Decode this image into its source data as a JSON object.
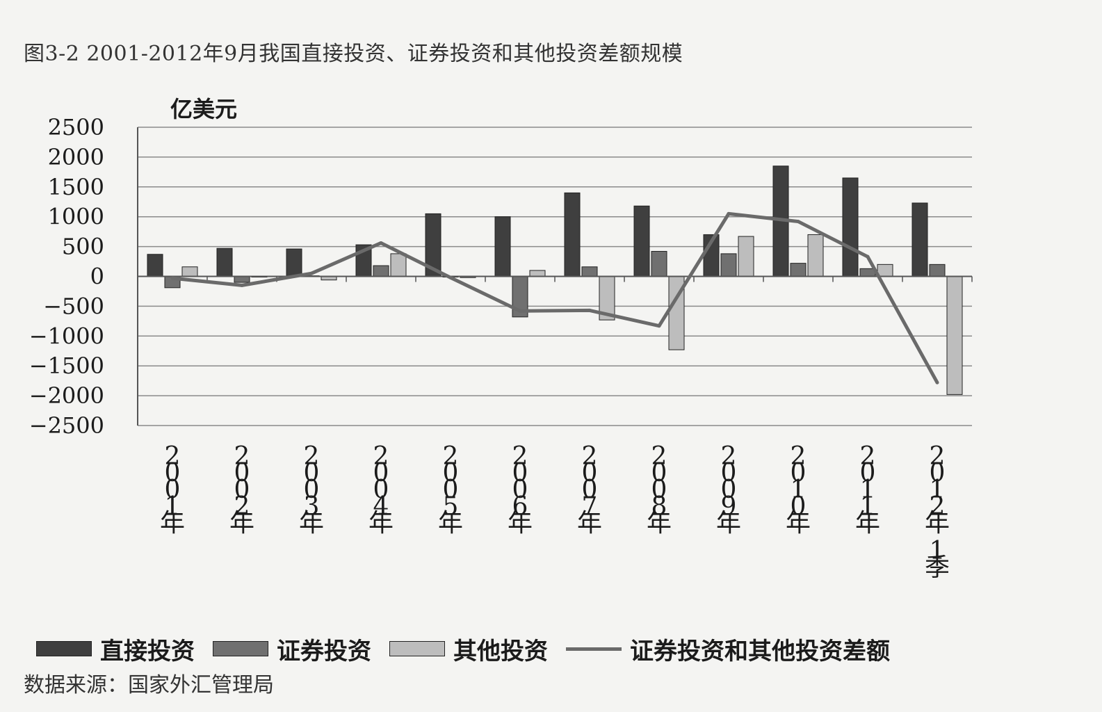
{
  "figure": {
    "title": "图3-2 2001-2012年9月我国直接投资、证券投资和其他投资差额规模",
    "source": "数据来源：国家外汇管理局"
  },
  "chart_data": {
    "type": "bar",
    "ylabel": "亿美元",
    "ylim": [
      -2500,
      2500
    ],
    "yticks": [
      2500,
      2000,
      1500,
      1000,
      500,
      0,
      -500,
      -1000,
      -1500,
      -2000,
      -2500
    ],
    "ytick_labels": [
      "2500",
      "2000",
      "1500",
      "1000",
      "500",
      "0",
      "−500",
      "−1000",
      "−1500",
      "−2000",
      "−2500"
    ],
    "grid": true,
    "legend_position": "bottom",
    "categories": [
      "2001年",
      "2002年",
      "2003年",
      "2004年",
      "2005年",
      "2006年",
      "2007年",
      "2008年",
      "2009年",
      "2010年",
      "2011年",
      "2012年1季"
    ],
    "series": [
      {
        "name": "直接投资",
        "type": "bar",
        "color": "#3f3f3f",
        "values": [
          370,
          470,
          460,
          530,
          1050,
          1000,
          1400,
          1180,
          700,
          1850,
          1650,
          1230
        ]
      },
      {
        "name": "证券投资",
        "type": "bar",
        "color": "#707070",
        "values": [
          -190,
          -100,
          10,
          180,
          -10,
          -680,
          160,
          420,
          380,
          220,
          130,
          200
        ]
      },
      {
        "name": "其他投资",
        "type": "bar",
        "color": "#bdbdbd",
        "values": [
          160,
          0,
          -60,
          380,
          -20,
          100,
          -730,
          -1230,
          670,
          700,
          200,
          -1980
        ]
      },
      {
        "name": "证券投资和其他投资差额",
        "type": "line",
        "color": "#6a6a6a",
        "values": [
          -30,
          -150,
          50,
          560,
          -20,
          -580,
          -570,
          -830,
          1050,
          920,
          330,
          -1780
        ]
      }
    ]
  }
}
